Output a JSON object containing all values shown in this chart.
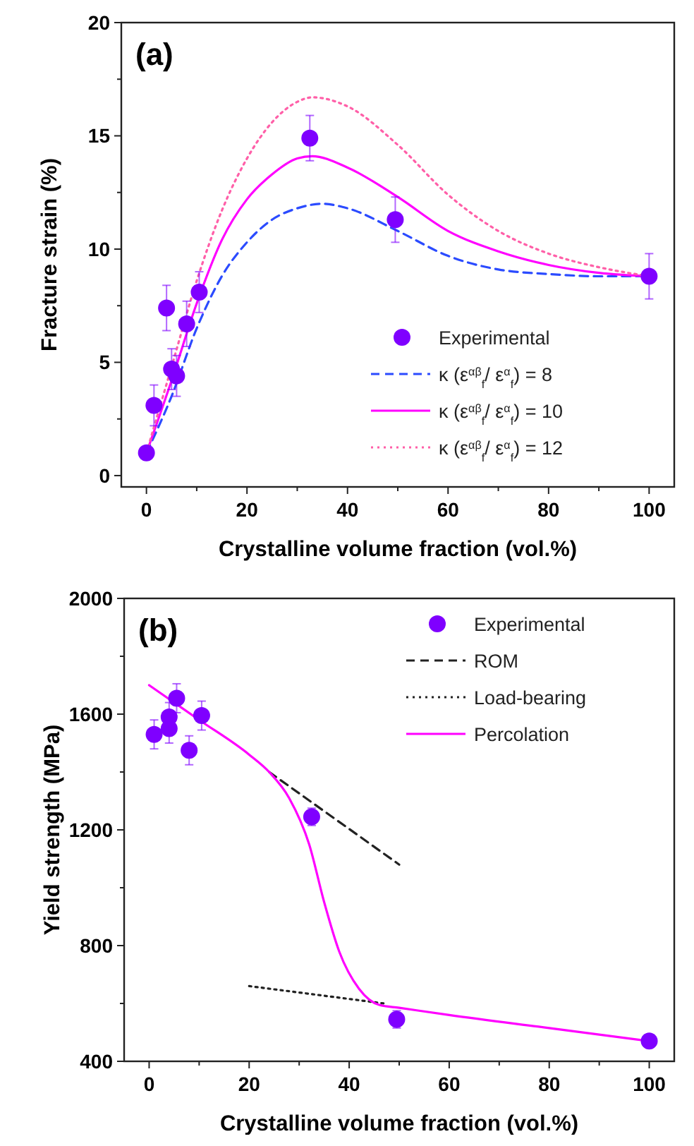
{
  "chart_data": [
    {
      "type": "line",
      "title": "(a)",
      "xlabel": "Crystalline volume fraction (vol.%)",
      "ylabel": "Fracture strain (%)",
      "xlim": [
        -5,
        105
      ],
      "xticks": [
        0,
        {
          "value": 10,
          "label": null
        },
        20,
        {
          "value": 30,
          "label": null
        },
        40,
        {
          "value": 50,
          "label": null
        },
        60,
        {
          "value": 70,
          "label": null
        },
        80,
        {
          "value": 90,
          "label": null
        },
        100
      ],
      "ylim": [
        -0.5,
        20
      ],
      "yticks": [
        0,
        {
          "value": 2.5,
          "label": null
        },
        5,
        {
          "value": 7.5,
          "label": null
        },
        10,
        {
          "value": 12.5,
          "label": null
        },
        15,
        {
          "value": 17.5,
          "label": null
        },
        20
      ],
      "grid": false,
      "legend": "bottom right",
      "series": [
        {
          "type": "scatter",
          "name": "Experimental",
          "color": "#7f00ff",
          "marker": "circle",
          "x": [
            0,
            1.5,
            4,
            5,
            6,
            8,
            10.5,
            32.5,
            49.5,
            100
          ],
          "values": [
            1.0,
            3.1,
            7.4,
            4.7,
            4.4,
            6.7,
            8.1,
            14.9,
            11.3,
            8.8
          ],
          "errors": [
            null,
            0.9,
            1.0,
            0.9,
            0.9,
            1.0,
            0.9,
            1.0,
            1.0,
            1.0
          ]
        },
        {
          "name": "κ (ε$^{αβ}$$_{f}$/ ε$^{α}$$_{f}$) = 8",
          "color": "#2b4bff",
          "line_style": "dashed",
          "x": [
            0,
            5,
            10,
            15,
            20,
            25,
            30,
            35,
            40,
            50,
            60,
            70,
            80,
            90,
            100
          ],
          "values": [
            1,
            3.5,
            6.5,
            8.8,
            10.3,
            11.3,
            11.8,
            12,
            11.8,
            10.8,
            9.7,
            9.1,
            8.9,
            8.8,
            8.8
          ]
        },
        {
          "name": "κ (ε$^{αβ}$$_{f}$/ ε$^{α}$$_{f}$) = 10",
          "color": "#ff00ff",
          "line_style": "solid",
          "x": [
            0,
            5,
            10,
            15,
            20,
            25,
            30,
            33,
            40,
            50,
            60,
            70,
            80,
            90,
            100
          ],
          "values": [
            1,
            4.2,
            7.6,
            10.4,
            12.2,
            13.3,
            14,
            14.1,
            13.6,
            12.3,
            10.8,
            9.9,
            9.3,
            8.95,
            8.8
          ]
        },
        {
          "name": "κ (ε$^{αβ}$$_{f}$/ ε$^{α}$$_{f}$) = 12",
          "color": "#ff5fa8",
          "line_style": "dotted",
          "x": [
            0,
            5,
            10,
            15,
            20,
            25,
            30,
            33,
            40,
            50,
            60,
            70,
            80,
            90,
            100
          ],
          "values": [
            1,
            4.8,
            8.6,
            11.7,
            14,
            15.6,
            16.5,
            16.7,
            16.3,
            14.6,
            12.4,
            10.8,
            9.8,
            9.2,
            8.8
          ]
        }
      ]
    },
    {
      "type": "line",
      "title": "(b)",
      "xlabel": "Crystalline volume fraction (vol.%)",
      "ylabel": "Yield strength (MPa)",
      "xlim": [
        -5,
        105
      ],
      "xticks": [
        0,
        {
          "value": 10,
          "label": null
        },
        20,
        {
          "value": 30,
          "label": null
        },
        40,
        {
          "value": 50,
          "label": null
        },
        60,
        {
          "value": 70,
          "label": null
        },
        80,
        {
          "value": 90,
          "label": null
        },
        100
      ],
      "ylim": [
        400,
        2000
      ],
      "yticks": [
        400,
        {
          "value": 600,
          "label": null
        },
        800,
        {
          "value": 1000,
          "label": null
        },
        1200,
        {
          "value": 1400,
          "label": null
        },
        1600,
        {
          "value": 1800,
          "label": null
        },
        2000
      ],
      "grid": false,
      "legend": "top right",
      "series": [
        {
          "type": "scatter",
          "name": "Experimental",
          "color": "#7f00ff",
          "marker": "circle",
          "x": [
            1,
            4,
            4,
            5.5,
            8,
            10.5,
            32.5,
            49.5,
            100
          ],
          "values": [
            1530,
            1550,
            1590,
            1655,
            1475,
            1595,
            1245,
            545,
            470
          ],
          "errors": [
            50,
            50,
            50,
            50,
            50,
            50,
            30,
            30,
            20
          ]
        },
        {
          "name": "ROM",
          "color": "#222222",
          "line_style": "dashed",
          "x": [
            24,
            50
          ],
          "values": [
            1400,
            1080
          ]
        },
        {
          "name": "Load-bearing",
          "color": "#222222",
          "line_style": "dotted",
          "x": [
            20,
            47
          ],
          "values": [
            660,
            600
          ]
        },
        {
          "name": "Percolation",
          "color": "#ff00ff",
          "line_style": "solid",
          "x": [
            0,
            10,
            20,
            24,
            28,
            32,
            35,
            38,
            42,
            46,
            50,
            60,
            80,
            100
          ],
          "values": [
            1700,
            1580,
            1460,
            1400,
            1310,
            1150,
            950,
            780,
            650,
            595,
            585,
            560,
            515,
            470
          ]
        }
      ]
    }
  ]
}
